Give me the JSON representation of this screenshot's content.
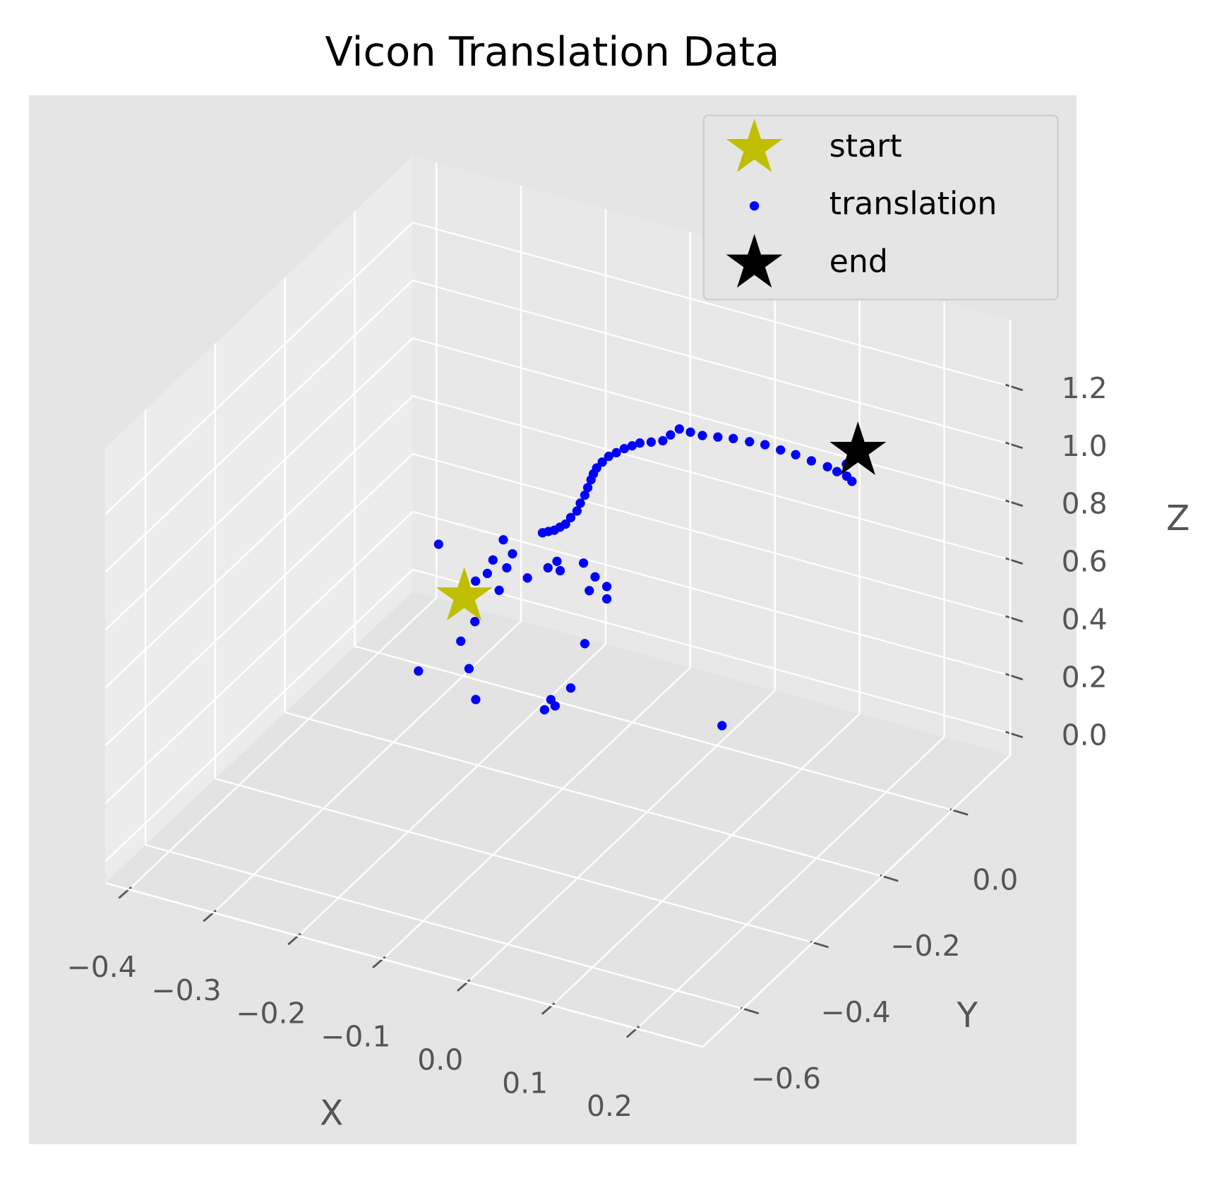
{
  "chart_data": {
    "type": "scatter3d",
    "title": "Vicon Translation Data",
    "xlabel": "X",
    "ylabel": "Y",
    "zlabel": "Z",
    "xlim": [
      -0.428,
      0.278
    ],
    "ylim": [
      -0.715,
      0.166
    ],
    "zlim": [
      -0.075,
      1.43
    ],
    "xticks": [
      {
        "value": -0.4,
        "label": "−0.4"
      },
      {
        "value": -0.3,
        "label": "−0.3"
      },
      {
        "value": -0.2,
        "label": "−0.2"
      },
      {
        "value": -0.1,
        "label": "−0.1"
      },
      {
        "value": 0,
        "label": "0.0"
      },
      0.1,
      0.2
    ],
    "yticks": [
      {
        "value": -0.6,
        "label": "−0.6"
      },
      {
        "value": -0.4,
        "label": "−0.4"
      },
      {
        "value": -0.2,
        "label": "−0.2"
      },
      {
        "value": 0,
        "label": "0.0"
      }
    ],
    "zticks": [
      {
        "value": 0,
        "label": "0.0"
      },
      0.2,
      0.4,
      0.6,
      0.8,
      {
        "value": 1,
        "label": "1.0"
      },
      1.2
    ],
    "grid": true,
    "legend_loc": "upper right",
    "series": [
      {
        "name": "start",
        "color": "#bfbf00",
        "marker": "star",
        "x": [
          -0.215
        ],
        "y": [
          -0.203
        ],
        "z": [
          0.5
        ]
      },
      {
        "name": "translation",
        "color": "#0000ff",
        "marker": "dot",
        "x": [
          -0.215,
          -0.214,
          -0.205,
          -0.187,
          -0.177,
          -0.17,
          -0.163,
          -0.158,
          -0.153,
          -0.149,
          -0.144,
          -0.143,
          -0.141,
          -0.14,
          -0.139,
          -0.137,
          -0.134,
          -0.129,
          -0.123,
          -0.114,
          -0.105,
          -0.095,
          -0.085,
          -0.07,
          -0.055,
          -0.048,
          -0.04,
          -0.024,
          -0.007,
          0.01,
          0.027,
          0.045,
          0.062,
          0.08,
          0.097,
          0.116,
          0.135,
          0.147,
          0.159,
          0.166,
          0.147,
          0.145,
          -0.317,
          -0.262,
          -0.252,
          -0.24,
          -0.203,
          -0.192,
          -0.194,
          -0.18,
          -0.166,
          -0.142,
          -0.122,
          -0.134,
          -0.11,
          -0.217,
          -0.209,
          -0.203,
          -0.087,
          -0.213,
          -0.169,
          -0.133,
          -0.057,
          -0.064,
          -0.06,
          -0.054,
          0.118
        ],
        "y": [
          -0.203,
          -0.173,
          -0.161,
          -0.149,
          -0.071,
          -0.071,
          -0.071,
          -0.067,
          -0.063,
          -0.058,
          -0.052,
          -0.045,
          -0.037,
          -0.031,
          -0.024,
          -0.022,
          -0.02,
          -0.016,
          -0.012,
          -0.012,
          -0.011,
          -0.013,
          -0.015,
          -0.019,
          -0.022,
          -0.017,
          -0.011,
          -0.018,
          -0.025,
          -0.022,
          -0.019,
          -0.016,
          -0.013,
          -0.012,
          -0.01,
          -0.011,
          -0.011,
          -0.013,
          -0.014,
          -0.016,
          0.014,
          0.052,
          -0.029,
          0.023,
          -0.031,
          -0.004,
          -0.051,
          0.007,
          -0.014,
          -0.013,
          0.02,
          -0.005,
          -0.02,
          -0.041,
          -0.049,
          -0.098,
          -0.187,
          -0.242,
          -0.168,
          -0.339,
          -0.301,
          -0.369,
          -0.281,
          -0.321,
          -0.349,
          -0.333,
          -0.272
        ],
        "z": [
          0.5,
          0.52,
          0.54,
          0.56,
          0.6,
          0.61,
          0.62,
          0.63,
          0.64,
          0.66,
          0.68,
          0.7,
          0.72,
          0.74,
          0.76,
          0.78,
          0.8,
          0.82,
          0.84,
          0.86,
          0.88,
          0.9,
          0.92,
          0.94,
          0.96,
          0.98,
          1.0,
          1.01,
          1.02,
          1.025,
          1.03,
          1.03,
          1.03,
          1.025,
          1.02,
          1.015,
          1.01,
          1.005,
          1.0,
          0.99,
          1.0,
          1.0,
          0.4,
          0.4,
          0.4,
          0.4,
          0.4,
          0.4,
          0.4,
          0.4,
          0.4,
          0.4,
          0.4,
          0.4,
          0.4,
          0.4,
          0.4,
          0.4,
          0.4,
          0.4,
          0.4,
          0.4,
          0.4,
          0.4,
          0.4,
          0.4,
          0.4
        ]
      },
      {
        "name": "end",
        "color": "#000000",
        "marker": "star",
        "x": [
          0.145
        ],
        "y": [
          0.052
        ],
        "z": [
          1.0
        ]
      }
    ]
  }
}
